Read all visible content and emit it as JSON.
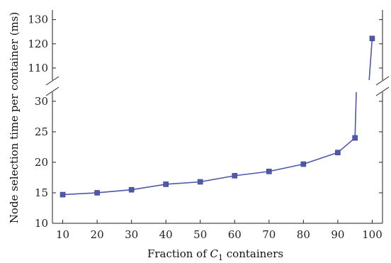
{
  "chart_data": {
    "type": "line",
    "xlabel_prefix": "Fraction of ",
    "xlabel_symbol": "C",
    "xlabel_subscript": "1",
    "xlabel_suffix": " containers",
    "ylabel": "Node selection time per container (ms)",
    "x_ticks": [
      10,
      20,
      30,
      40,
      50,
      60,
      70,
      80,
      90,
      100
    ],
    "xlim": [
      7,
      103
    ],
    "y_lower_ticks": [
      10,
      15,
      20,
      25,
      30
    ],
    "y_lower_range": [
      10,
      31.5
    ],
    "y_upper_ticks": [
      110,
      120,
      130
    ],
    "y_upper_range": [
      105,
      134
    ],
    "axis_break": true,
    "grid": false,
    "color": "#5058a8",
    "series": [
      {
        "x": [
          10,
          20,
          30,
          40,
          50,
          60,
          70,
          80,
          90,
          95,
          100
        ],
        "y": [
          14.7,
          15.0,
          15.5,
          16.4,
          16.8,
          17.8,
          18.5,
          19.7,
          21.6,
          24.0,
          122.2
        ]
      }
    ]
  }
}
